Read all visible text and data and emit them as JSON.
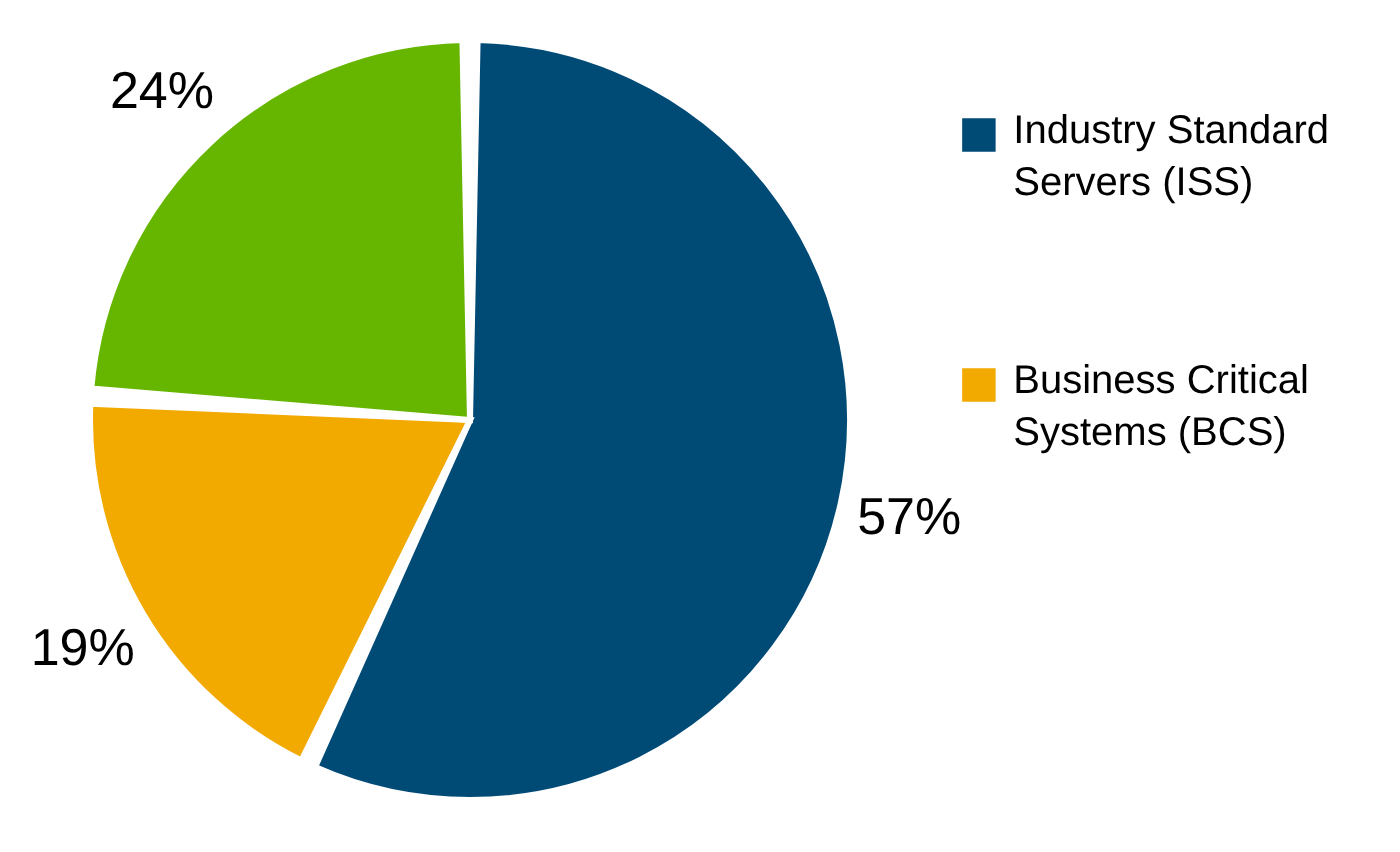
{
  "chart_data": {
    "type": "pie",
    "categories": [
      "Industry Standard Servers (ISS)",
      "Business Critical Systems (BCS)",
      null
    ],
    "values": [
      57,
      19,
      24
    ],
    "colors": [
      "#004a76",
      "#f2a900",
      "#66b600"
    ],
    "value_labels": [
      "57%",
      "19%",
      "24%"
    ],
    "legend": "right"
  }
}
